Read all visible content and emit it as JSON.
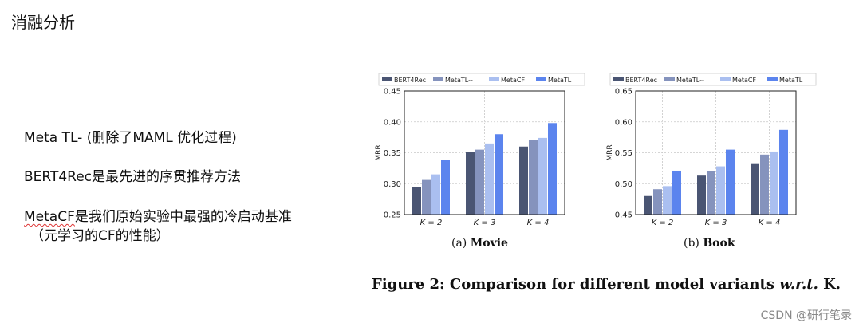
{
  "slide": {
    "title": "消融分析",
    "bullets": {
      "b1": "Meta TL- (删除了MAML 优化过程)",
      "b2": "BERT4Rec是最先进的序贯推荐方法",
      "b3_word": "MetaCF",
      "b3_rest": "是我们原始实验中最强的冷启动基准",
      "b3_sub": "（元学习的CF的性能）"
    }
  },
  "figure": {
    "caption_prefix": "Figure 2: Comparison for different model variants ",
    "caption_italic": "w.r.t.",
    "caption_suffix": " K.",
    "watermark": "CSDN @研行笔录"
  },
  "colors": {
    "BERT4Rec": "#4a5573",
    "MetaTL--": "#8593bd",
    "MetaCF": "#aabff0",
    "MetaTL": "#5b84ee"
  },
  "chart_data": [
    {
      "type": "bar",
      "subcaption_label": "(a)",
      "subcaption_name": "Movie",
      "ylabel": "MRR",
      "ylim": [
        0.25,
        0.45
      ],
      "yticks": [
        "0.25",
        "0.30",
        "0.35",
        "0.40",
        "0.45"
      ],
      "grid": true,
      "legend_position": "top",
      "categories": [
        "K = 2",
        "K = 3",
        "K = 4"
      ],
      "series": [
        {
          "name": "BERT4Rec",
          "values": [
            0.295,
            0.351,
            0.36
          ]
        },
        {
          "name": "MetaTL--",
          "values": [
            0.306,
            0.355,
            0.37
          ]
        },
        {
          "name": "MetaCF",
          "values": [
            0.315,
            0.365,
            0.374
          ]
        },
        {
          "name": "MetaTL",
          "values": [
            0.338,
            0.38,
            0.398
          ]
        }
      ]
    },
    {
      "type": "bar",
      "subcaption_label": "(b)",
      "subcaption_name": "Book",
      "ylabel": "MRR",
      "ylim": [
        0.45,
        0.65
      ],
      "yticks": [
        "0.45",
        "0.50",
        "0.55",
        "0.60",
        "0.65"
      ],
      "grid": true,
      "legend_position": "top",
      "categories": [
        "K = 2",
        "K = 3",
        "K = 4"
      ],
      "series": [
        {
          "name": "BERT4Rec",
          "values": [
            0.48,
            0.513,
            0.533
          ]
        },
        {
          "name": "MetaTL--",
          "values": [
            0.491,
            0.52,
            0.547
          ]
        },
        {
          "name": "MetaCF",
          "values": [
            0.496,
            0.528,
            0.552
          ]
        },
        {
          "name": "MetaTL",
          "values": [
            0.521,
            0.555,
            0.587
          ]
        }
      ]
    }
  ]
}
